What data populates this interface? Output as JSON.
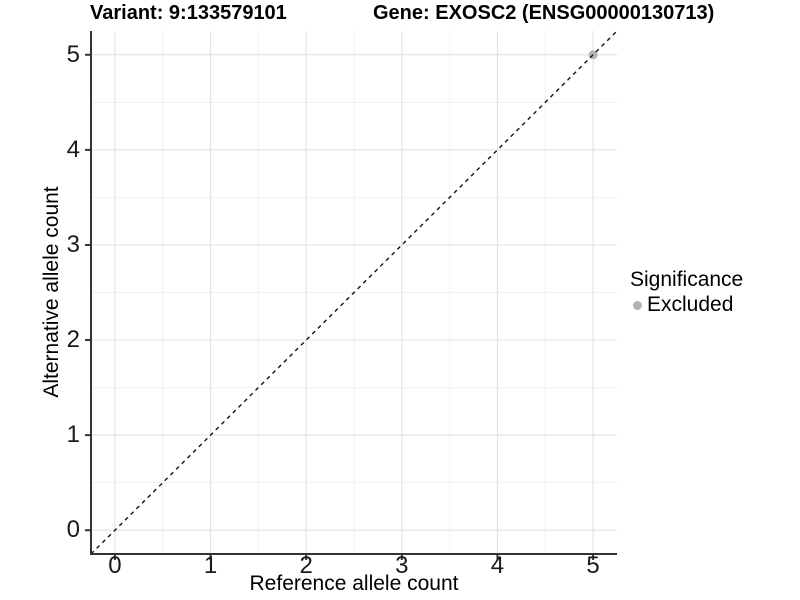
{
  "titles": {
    "variant": "Variant: 9:133579101",
    "gene": "Gene: EXOSC2 (ENSG00000130713)"
  },
  "legend": {
    "title": "Significance",
    "items": [
      {
        "label": "Excluded",
        "color": "#b3b3b3"
      }
    ]
  },
  "colors": {
    "background": "#ffffff",
    "axis_line": "#333333",
    "tick_mark": "#333333",
    "tick_text": "#1a1a1a",
    "grid_major": "#e4e4e4",
    "grid_minor": "#f1f1f1",
    "reference_line": "#111111",
    "point_excluded": "#b3b3b3"
  },
  "chart_data": {
    "type": "scatter",
    "title_left": "Variant: 9:133579101",
    "title_right": "Gene: EXOSC2 (ENSG00000130713)",
    "xlabel": "Reference allele count",
    "ylabel": "Alternative allele count",
    "xlim": [
      -0.25,
      5.25
    ],
    "ylim": [
      -0.25,
      5.25
    ],
    "x_ticks": [
      0,
      1,
      2,
      3,
      4,
      5
    ],
    "y_ticks": [
      0,
      1,
      2,
      3,
      4,
      5
    ],
    "grid": true,
    "minor_grid": true,
    "reference_line": {
      "slope": 1,
      "intercept": 0,
      "style": "dashed"
    },
    "series": [
      {
        "name": "Excluded",
        "color": "#b3b3b3",
        "points": [
          {
            "x": 5,
            "y": 5
          }
        ]
      }
    ],
    "legend_position": "right",
    "legend_title": "Significance"
  }
}
